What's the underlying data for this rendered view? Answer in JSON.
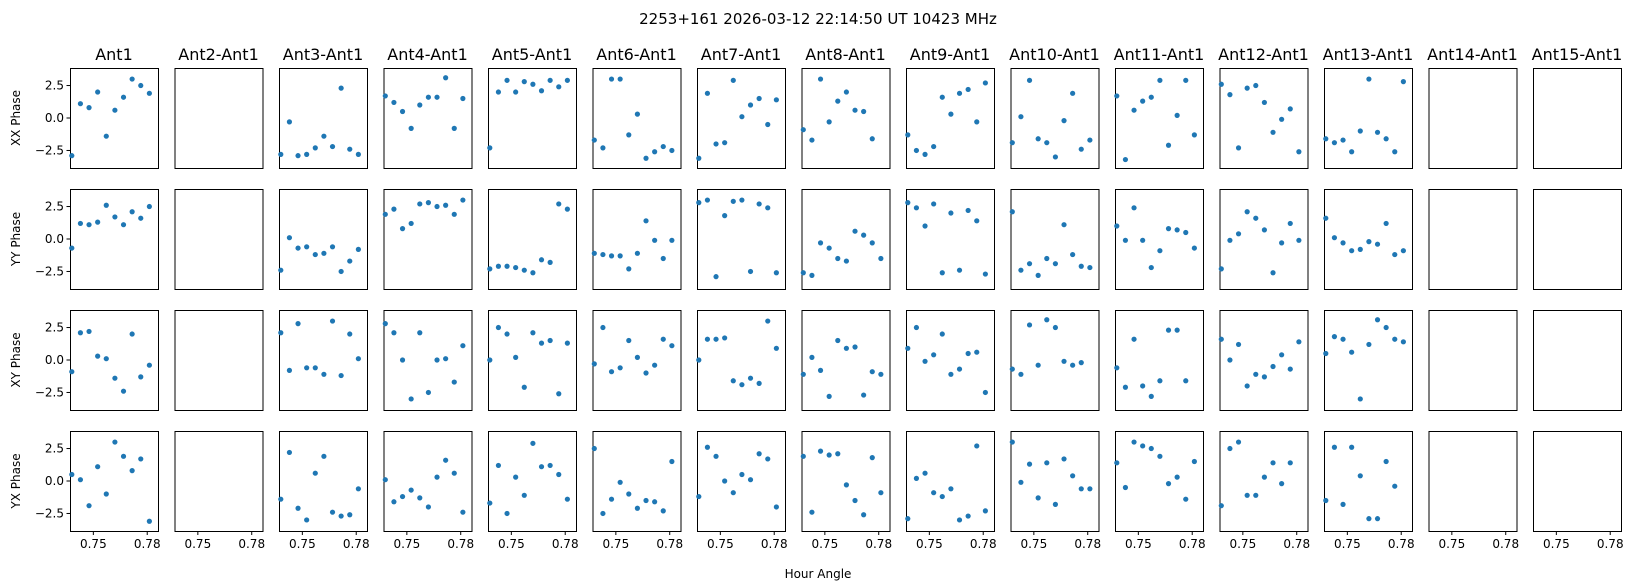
{
  "chart_data": {
    "type": "scatter",
    "title": "2253+161  2026-03-12 22:14:50 UT  10423 MHz",
    "xlabel": "Hour Angle",
    "columns": [
      "Ant1",
      "Ant2-Ant1",
      "Ant3-Ant1",
      "Ant4-Ant1",
      "Ant5-Ant1",
      "Ant6-Ant1",
      "Ant7-Ant1",
      "Ant8-Ant1",
      "Ant9-Ant1",
      "Ant10-Ant1",
      "Ant11-Ant1",
      "Ant12-Ant1",
      "Ant13-Ant1",
      "Ant14-Ant1",
      "Ant15-Ant1"
    ],
    "rows": [
      "XX Phase",
      "YY Phase",
      "XY Phase",
      "YX Phase"
    ],
    "xlim": [
      0.737,
      0.786
    ],
    "ylim": [
      -3.85,
      3.85
    ],
    "xticks": [
      0.75,
      0.78
    ],
    "xtick_labels": [
      "0.75",
      "0.78"
    ],
    "yticks": [
      2.5,
      0.0,
      -2.5
    ],
    "ytick_labels": [
      "2.5",
      "0.0",
      "−2.5"
    ],
    "x": [
      0.738,
      0.7428,
      0.7476,
      0.7524,
      0.7572,
      0.762,
      0.7668,
      0.7716,
      0.7764,
      0.7812,
      0.786
    ],
    "y": [
      [
        [
          -2.9,
          1.1,
          0.8,
          2.0,
          -1.4,
          0.6,
          1.6,
          3.0,
          2.5,
          1.9
        ],
        [],
        [
          -2.8,
          -0.3,
          -2.9,
          -2.8,
          -2.3,
          -1.4,
          -2.2,
          2.3,
          -2.4,
          -2.8
        ],
        [
          1.7,
          1.2,
          0.5,
          -0.8,
          1.0,
          1.6,
          1.6,
          3.1,
          -0.8,
          1.5
        ],
        [
          -2.3,
          2.0,
          2.9,
          2.0,
          2.8,
          2.6,
          2.1,
          2.9,
          2.4,
          2.9
        ],
        [
          -1.7,
          -2.3,
          3.0,
          3.0,
          -1.3,
          0.3,
          -3.1,
          -2.6,
          -2.2,
          -2.5
        ],
        [
          -3.1,
          1.9,
          -2.0,
          -1.9,
          2.9,
          0.1,
          1.0,
          1.5,
          -0.5,
          1.4
        ],
        [
          -0.9,
          -1.7,
          3.0,
          -0.3,
          1.3,
          2.0,
          0.6,
          0.5,
          -1.6
        ],
        [
          -1.3,
          -2.5,
          -2.8,
          -2.2,
          1.6,
          0.3,
          1.9,
          2.2,
          -0.3,
          2.7
        ],
        [
          -1.9,
          0.1,
          2.9,
          -1.6,
          -1.9,
          -3.0,
          -0.2,
          1.9,
          -2.4,
          -1.7
        ],
        [
          1.7,
          -3.2,
          0.6,
          1.3,
          1.6,
          2.9,
          -2.1,
          0.2,
          2.9,
          -1.3
        ],
        [
          2.6,
          1.8,
          -2.3,
          2.3,
          2.5,
          1.2,
          -1.1,
          -0.1,
          0.7,
          -2.6
        ],
        [
          -1.6,
          -1.9,
          -1.7,
          -2.6,
          -1.0,
          3.0,
          -1.1,
          -1.6,
          -2.6,
          2.8
        ],
        [],
        []
      ],
      [
        [
          -0.7,
          1.2,
          1.1,
          1.3,
          2.6,
          1.7,
          1.1,
          2.1,
          1.6,
          2.5
        ],
        [],
        [
          -2.4,
          0.1,
          -0.7,
          -0.6,
          -1.2,
          -1.1,
          -0.6,
          -2.5,
          -1.7,
          -0.8
        ],
        [
          1.9,
          2.3,
          0.8,
          1.2,
          2.7,
          2.8,
          2.5,
          2.6,
          1.9,
          3.0
        ],
        [
          -2.3,
          -2.1,
          -2.1,
          -2.2,
          -2.4,
          -2.6,
          -1.6,
          -1.8,
          2.7,
          2.3
        ],
        [
          -1.1,
          -1.2,
          -1.3,
          -1.3,
          -2.3,
          -1.1,
          1.4,
          -0.1,
          -1.5,
          -0.1
        ],
        [
          2.8,
          3.0,
          -2.9,
          1.8,
          2.9,
          3.0,
          -2.5,
          2.7,
          2.4,
          -2.6
        ],
        [
          -2.6,
          -2.8,
          -0.3,
          -0.7,
          -1.5,
          -1.7,
          0.6,
          0.3,
          -0.3,
          -1.5
        ],
        [
          2.8,
          2.4,
          1.0,
          2.7,
          -2.6,
          2.0,
          -2.4,
          2.2,
          1.4,
          -2.7
        ],
        [
          2.1,
          -2.4,
          -1.9,
          -2.8,
          -1.5,
          -1.9,
          1.1,
          -1.2,
          -2.1,
          -2.2
        ],
        [
          1.0,
          -0.1,
          2.4,
          -0.1,
          -2.2,
          -0.9,
          0.8,
          0.7,
          0.5,
          -0.7
        ],
        [
          -2.3,
          -0.1,
          0.4,
          2.1,
          1.6,
          0.7,
          -2.6,
          -0.3,
          1.2,
          -0.1
        ],
        [
          1.6,
          0.1,
          -0.3,
          -0.9,
          -0.8,
          -0.2,
          -0.4,
          1.2,
          -1.2,
          -0.9
        ],
        [],
        []
      ],
      [
        [
          -0.9,
          2.1,
          2.2,
          0.3,
          0.1,
          -1.4,
          -2.4,
          2.0,
          -1.3,
          -0.4
        ],
        [],
        [
          2.1,
          -0.8,
          2.8,
          -0.6,
          -0.6,
          -1.1,
          3.0,
          -1.2,
          2.0,
          0.1
        ],
        [
          2.8,
          2.1,
          0.0,
          -3.0,
          2.1,
          -2.5,
          0.0,
          0.1,
          -1.7,
          1.1
        ],
        [
          0.0,
          2.5,
          2.0,
          0.2,
          -2.1,
          2.1,
          1.3,
          1.5,
          -2.6,
          1.3
        ],
        [
          -0.3,
          2.5,
          -0.9,
          -0.6,
          1.5,
          0.2,
          -1.0,
          -0.4,
          1.6,
          1.1
        ],
        [
          0.0,
          1.6,
          1.6,
          1.7,
          -1.6,
          -1.9,
          -1.4,
          -1.8,
          3.0,
          0.9
        ],
        [
          -1.1,
          0.2,
          -0.8,
          -2.8,
          1.5,
          0.9,
          1.0,
          -2.7,
          -0.9,
          -1.1
        ],
        [
          0.9,
          2.5,
          -0.1,
          0.4,
          2.0,
          -1.1,
          -0.7,
          0.5,
          0.6,
          -2.5
        ],
        [
          -0.7,
          -1.1,
          2.7,
          -0.4,
          3.1,
          2.5,
          -0.1,
          -0.4,
          -0.2
        ],
        [
          -0.6,
          -2.1,
          1.6,
          -2.0,
          -2.8,
          -1.6,
          2.3,
          2.3,
          -1.6
        ],
        [
          1.6,
          0.0,
          1.2,
          -2.0,
          -1.1,
          -1.3,
          -0.5,
          0.4,
          -0.7,
          1.4
        ],
        [
          0.5,
          1.8,
          1.6,
          0.6,
          -3.0,
          1.2,
          3.1,
          2.5,
          1.6,
          1.4
        ],
        [],
        []
      ],
      [
        [
          0.5,
          0.1,
          -1.9,
          1.1,
          -1.0,
          3.0,
          1.9,
          0.8,
          1.7,
          -3.1
        ],
        [],
        [
          -1.4,
          2.2,
          -2.1,
          -3.0,
          0.6,
          1.9,
          -2.4,
          -2.7,
          -2.6,
          -0.6
        ],
        [
          0.1,
          -1.6,
          -1.2,
          -0.7,
          -1.3,
          -2.0,
          0.3,
          1.6,
          0.6,
          -2.4
        ],
        [
          -1.7,
          1.2,
          -2.5,
          0.3,
          -1.1,
          2.9,
          1.1,
          1.2,
          0.5,
          -1.4
        ],
        [
          2.5,
          -2.5,
          -1.4,
          -0.1,
          -1.0,
          -2.1,
          -1.5,
          -1.6,
          -2.3,
          1.5
        ],
        [
          -1.2,
          2.6,
          1.9,
          0.0,
          -0.9,
          0.5,
          0.1,
          2.1,
          1.7,
          -2.0
        ],
        [
          1.9,
          -2.4,
          2.3,
          2.0,
          2.1,
          -0.3,
          -1.5,
          -2.6,
          1.8,
          -0.9
        ],
        [
          -2.9,
          0.2,
          0.6,
          -0.9,
          -1.2,
          -0.6,
          -3.0,
          -2.7,
          2.7,
          -2.3
        ],
        [
          3.0,
          -0.1,
          1.3,
          -1.3,
          1.4,
          -1.8,
          1.7,
          0.4,
          -0.6,
          -0.6
        ],
        [
          1.4,
          -0.5,
          3.0,
          2.7,
          2.5,
          1.9,
          -0.2,
          0.3,
          -1.4,
          1.5
        ],
        [
          -1.9,
          2.5,
          3.0,
          -1.1,
          -1.1,
          0.3,
          1.4,
          -0.2,
          1.4
        ],
        [
          -1.5,
          2.6,
          -1.8,
          2.6,
          0.4,
          -2.9,
          -2.9,
          1.5,
          -0.4
        ],
        [],
        []
      ]
    ]
  }
}
